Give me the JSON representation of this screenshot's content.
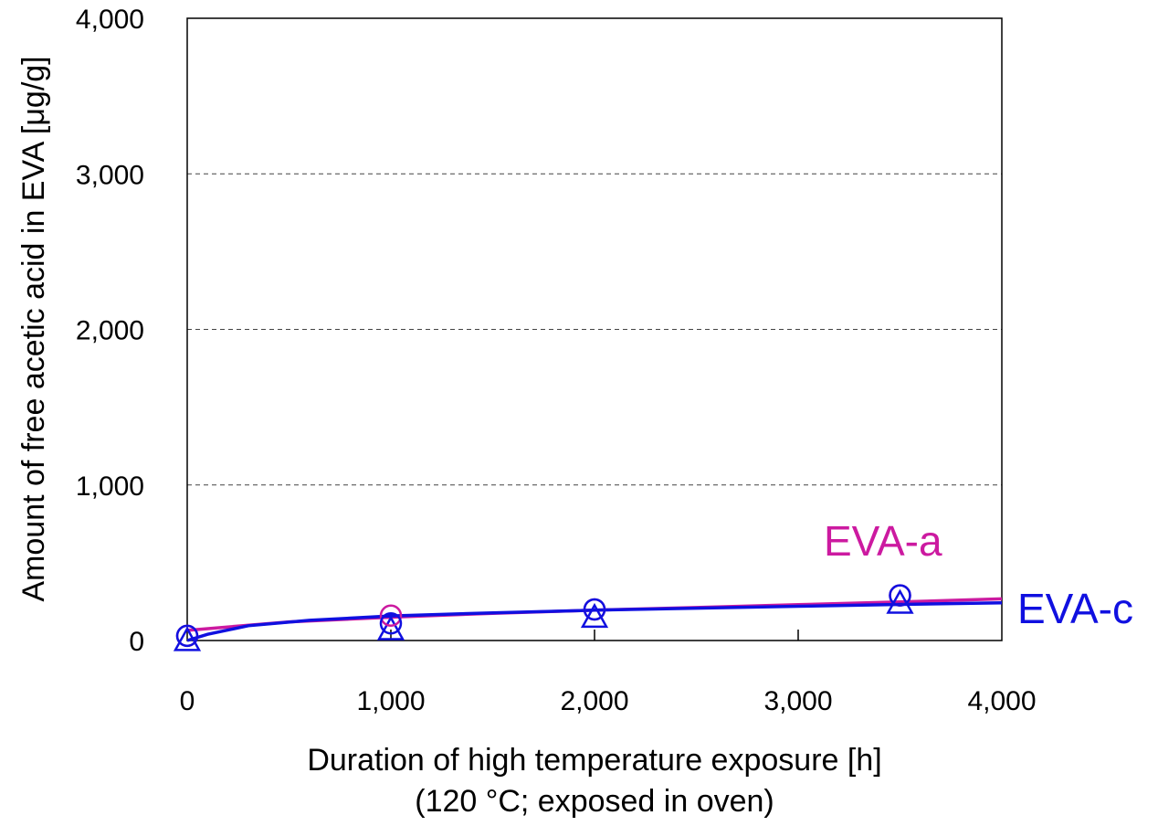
{
  "chart_data": {
    "type": "scatter",
    "title": "",
    "xlabel": "Duration of high temperature exposure [h]",
    "xlabel_line2": "(120 °C; exposed in oven)",
    "ylabel": "Amount of free acetic acid in EVA [μg/g]",
    "xlim": [
      0,
      4000
    ],
    "ylim": [
      0,
      4000
    ],
    "x_ticks": [
      "0",
      "1,000",
      "2,000",
      "3,000",
      "4,000"
    ],
    "y_ticks": [
      "0",
      "1,000",
      "2,000",
      "3,000",
      "4,000"
    ],
    "grid": "horizontal dashed",
    "series": [
      {
        "name": "EVA-a",
        "color": "#cc1aa0",
        "marker": "circle",
        "points": [
          {
            "x": 0,
            "y": 30
          },
          {
            "x": 1000,
            "y": 160
          },
          {
            "x": 2000,
            "y": 200
          },
          {
            "x": 3500,
            "y": 290
          }
        ],
        "trend": [
          {
            "x": 0,
            "y": 65
          },
          {
            "x": 500,
            "y": 120
          },
          {
            "x": 1000,
            "y": 150
          },
          {
            "x": 1500,
            "y": 175
          },
          {
            "x": 2000,
            "y": 195
          },
          {
            "x": 2500,
            "y": 212
          },
          {
            "x": 3000,
            "y": 230
          },
          {
            "x": 3500,
            "y": 248
          },
          {
            "x": 4000,
            "y": 268
          }
        ]
      },
      {
        "name": "EVA-c",
        "color": "#1010e0",
        "marker": "circle+triangle",
        "points": [
          {
            "x": 0,
            "y": 30
          },
          {
            "x": 1000,
            "y": 110
          },
          {
            "x": 2000,
            "y": 200
          },
          {
            "x": 3500,
            "y": 290
          }
        ],
        "points2": [
          {
            "x": 0,
            "y": 0
          },
          {
            "x": 1000,
            "y": 70
          },
          {
            "x": 2000,
            "y": 150
          },
          {
            "x": 3500,
            "y": 240
          }
        ],
        "trend": [
          {
            "x": 0,
            "y": 0
          },
          {
            "x": 100,
            "y": 40
          },
          {
            "x": 300,
            "y": 95
          },
          {
            "x": 600,
            "y": 130
          },
          {
            "x": 1000,
            "y": 158
          },
          {
            "x": 1500,
            "y": 178
          },
          {
            "x": 2000,
            "y": 195
          },
          {
            "x": 2500,
            "y": 208
          },
          {
            "x": 3000,
            "y": 220
          },
          {
            "x": 3500,
            "y": 232
          },
          {
            "x": 4000,
            "y": 242
          }
        ]
      }
    ]
  }
}
